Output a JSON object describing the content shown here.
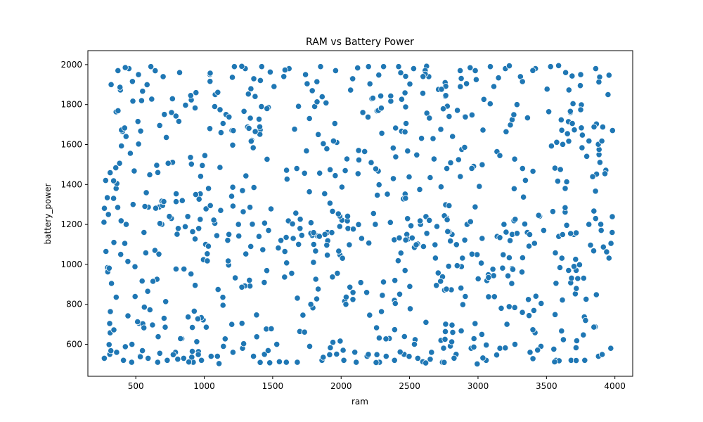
{
  "chart_data": {
    "type": "scatter",
    "title": "RAM vs Battery Power",
    "xlabel": "ram",
    "ylabel": "battery_power",
    "xlim": [
      150,
      4130
    ],
    "ylim": [
      440,
      2070
    ],
    "xticks": [
      500,
      1000,
      1500,
      2000,
      2500,
      3000,
      3500,
      4000
    ],
    "yticks": [
      600,
      800,
      1000,
      1200,
      1400,
      1600,
      1800,
      2000
    ],
    "grid": false,
    "marker_color": "#1f77b4",
    "marker_edge_color": "#ffffff",
    "point_count": 800,
    "x_range": [
      260,
      3998
    ],
    "y_range": [
      501,
      1998
    ],
    "x": [
      320,
      370,
      450,
      520,
      610,
      700,
      820,
      940,
      1080,
      1220,
      1300,
      1420,
      1510,
      1620,
      1740,
      1850,
      1960,
      2080,
      2200,
      2310,
      2420,
      2530,
      2640,
      2760,
      2870,
      2980,
      3090,
      3200,
      3310,
      3420,
      3530,
      3640,
      3750,
      3860,
      3950,
      280,
      300,
      340,
      390,
      430,
      480,
      560,
      640,
      690,
      760,
      810,
      880,
      960,
      1010,
      1120,
      1180,
      1250,
      1340,
      1400,
      1470,
      1560,
      1650,
      1700,
      1800,
      1900,
      1990,
      2050,
      2150,
      2250,
      2360,
      2480,
      2580,
      2700,
      2810,
      2920,
      3030,
      3140,
      3250,
      3360,
      3480,
      3590,
      3700,
      3810,
      3900,
      3980,
      270,
      310,
      360,
      410,
      470,
      530,
      590,
      660,
      730,
      790,
      850,
      920,
      980,
      1050,
      1140,
      1210,
      1280,
      1360,
      1440,
      1530,
      1600,
      1680,
      1770,
      1860,
      1940,
      2020,
      2110,
      2190,
      2280,
      2390,
      2460,
      2560,
      2660,
      2740,
      2840,
      2950,
      3060,
      3160,
      3270,
      3380,
      3460,
      3570,
      3680,
      3780,
      3880,
      3970
    ],
    "y": [
      1900,
      1970,
      1980,
      1950,
      1990,
      1940,
      1960,
      1860,
      1850,
      1990,
      1980,
      1990,
      1890,
      1980,
      1950,
      1990,
      1970,
      1930,
      1990,
      1990,
      1990,
      1980,
      1940,
      1910,
      1970,
      1970,
      1990,
      1980,
      1940,
      1980,
      1990,
      1960,
      1950,
      1980,
      1850,
      1420,
      1250,
      1110,
      1050,
      1200,
      1300,
      1160,
      1070,
      1200,
      1230,
      1180,
      1240,
      1180,
      1100,
      1270,
      1150,
      1200,
      1090,
      1140,
      1170,
      1120,
      1130,
      1180,
      1100,
      1160,
      1190,
      1180,
      1130,
      1200,
      1210,
      1150,
      1200,
      1190,
      1150,
      1200,
      1130,
      1140,
      1150,
      1160,
      1170,
      1140,
      1150,
      1200,
      1170,
      1160,
      530,
      550,
      560,
      520,
      510,
      540,
      530,
      510,
      520,
      560,
      530,
      510,
      520,
      540,
      590,
      560,
      580,
      540,
      550,
      600,
      510,
      510,
      590,
      520,
      610,
      520,
      510,
      540,
      510,
      520,
      550,
      530,
      560,
      510,
      550,
      580,
      520,
      580,
      600,
      560,
      590,
      520,
      520,
      520,
      540,
      580
    ]
  }
}
